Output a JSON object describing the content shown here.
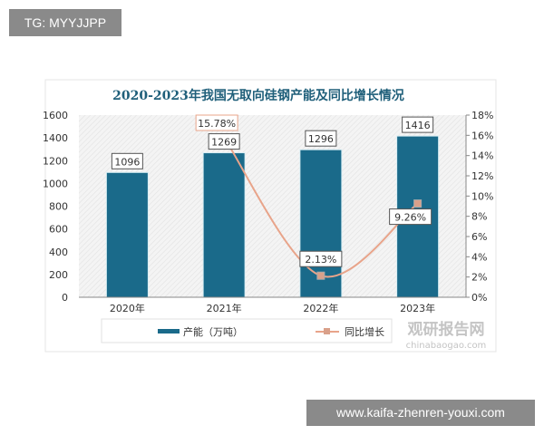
{
  "overlay": {
    "tag_text": "TG: MYYJJPP",
    "site_text": "www.kaifa-zhenren-youxi.com"
  },
  "watermark": {
    "cn": "观研报告网",
    "en": "chinabaogao.com"
  },
  "colors": {
    "bar": "#1a6a8a",
    "line": "#e8a48a",
    "marker": "#d9a08a",
    "title": "#1f5f7a"
  },
  "chart_data": {
    "type": "bar+line",
    "title": "2020-2023年我国无取向硅钢产能及同比增长情况",
    "categories": [
      "2020年",
      "2021年",
      "2022年",
      "2023年"
    ],
    "series": [
      {
        "name": "产能（万吨）",
        "type": "bar",
        "axis": "left",
        "values": [
          1096,
          1269,
          1296,
          1416
        ],
        "labels": [
          "1096",
          "1269",
          "1296",
          "1416"
        ]
      },
      {
        "name": "同比增长",
        "type": "line",
        "axis": "right",
        "values": [
          null,
          15.78,
          2.13,
          9.26
        ],
        "labels": [
          "",
          "15.78%",
          "2.13%",
          "9.26%"
        ]
      }
    ],
    "y_left": {
      "range": [
        0,
        1600
      ],
      "ticks": [
        "0",
        "200",
        "400",
        "600",
        "800",
        "1000",
        "1200",
        "1400",
        "1600"
      ]
    },
    "y_right": {
      "range": [
        0,
        18
      ],
      "ticks": [
        "0%",
        "2%",
        "4%",
        "6%",
        "8%",
        "10%",
        "12%",
        "14%",
        "16%",
        "18%"
      ]
    },
    "grid": false,
    "legend": "bottom"
  }
}
